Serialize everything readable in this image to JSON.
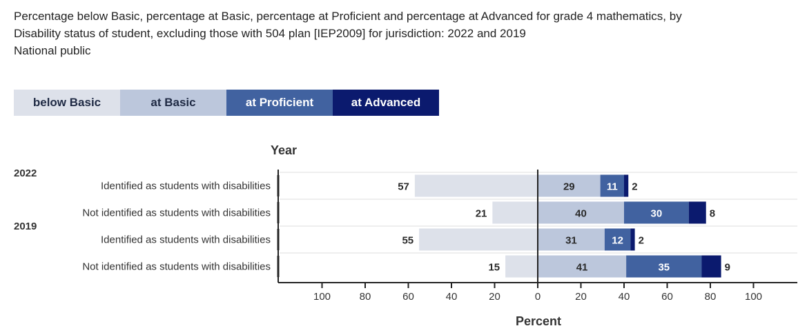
{
  "title": {
    "line1": "Percentage below Basic, percentage at Basic, percentage at Proficient and percentage at Advanced for grade 4 mathematics, by",
    "line2": "Disability status of student, excluding those with 504 plan [IEP2009] for jurisdiction: 2022 and 2019",
    "line3": "National public"
  },
  "legend": [
    {
      "label": "below Basic",
      "color": "#dde1ea",
      "text_color": "#1f2a44"
    },
    {
      "label": "at Basic",
      "color": "#bcc7dc",
      "text_color": "#1f2a44"
    },
    {
      "label": "at Proficient",
      "color": "#4162a0",
      "text_color": "#ffffff"
    },
    {
      "label": "at Advanced",
      "color": "#0b1a6e",
      "text_color": "#ffffff"
    }
  ],
  "chart_data": {
    "type": "bar",
    "orientation": "horizontal-diverging",
    "y_title": "Year",
    "x_title": "Percent",
    "x_ticks": [
      "100",
      "80",
      "60",
      "40",
      "20",
      "0",
      "20",
      "40",
      "60",
      "80",
      "100"
    ],
    "xlim": [
      -120,
      120
    ],
    "groups": [
      {
        "year": "2022",
        "rows": [
          {
            "label": "Identified as students with disabilities",
            "below_basic": 57,
            "basic": 29,
            "proficient": 11,
            "advanced": 2
          },
          {
            "label": "Not identified as students with disabilities",
            "below_basic": 21,
            "basic": 40,
            "proficient": 30,
            "advanced": 8
          }
        ]
      },
      {
        "year": "2019",
        "rows": [
          {
            "label": "Identified as students with disabilities",
            "below_basic": 55,
            "basic": 31,
            "proficient": 12,
            "advanced": 2
          },
          {
            "label": "Not identified as students with disabilities",
            "below_basic": 15,
            "basic": 41,
            "proficient": 35,
            "advanced": 9
          }
        ]
      }
    ]
  }
}
